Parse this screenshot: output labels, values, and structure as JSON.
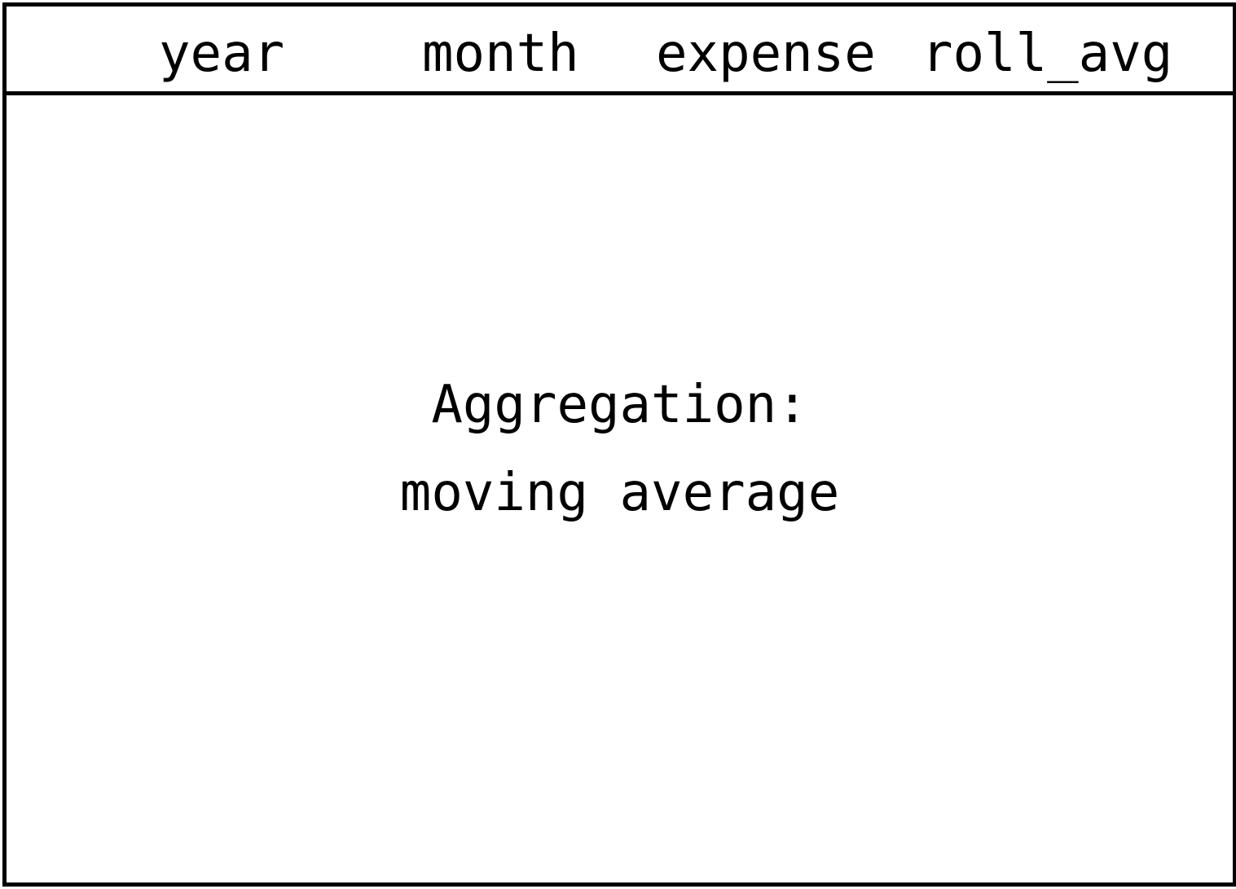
{
  "table": {
    "columns": [
      "year",
      "month",
      "expense",
      "roll_avg"
    ]
  },
  "body": {
    "caption_line1": "Aggregation:",
    "caption_line2": "moving average"
  }
}
